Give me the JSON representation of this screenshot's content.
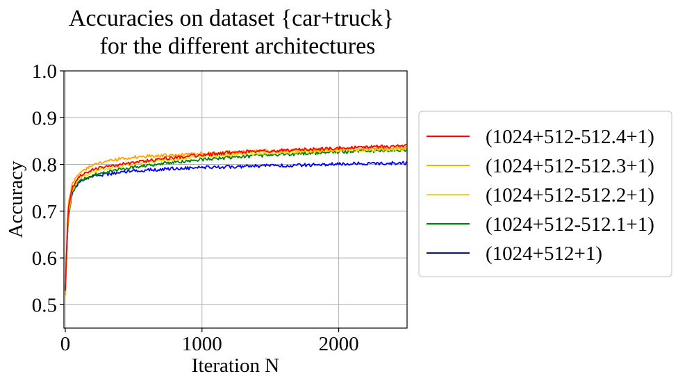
{
  "chart_data": {
    "type": "line",
    "title": [
      "Accuracies on dataset {car+truck}",
      "for the different architectures"
    ],
    "xlabel": "Iteration N",
    "ylabel": "Accuracy",
    "xlim": [
      -10,
      2500
    ],
    "ylim": [
      0.45,
      1.0
    ],
    "xticks": [
      0,
      1000,
      2000
    ],
    "xtick_labels": [
      "0",
      "1000",
      "2000"
    ],
    "yticks": [
      0.5,
      0.6,
      0.7,
      0.8,
      0.9,
      1.0
    ],
    "ytick_labels": [
      "0.5",
      "0.6",
      "0.7",
      "0.8",
      "0.9",
      "1.0"
    ],
    "grid": true,
    "legend_position": "outside-right",
    "series": [
      {
        "name": "(1024+512-512.4+1)",
        "color": "#ff0000",
        "anchors": [
          [
            0,
            0.53
          ],
          [
            20,
            0.7
          ],
          [
            50,
            0.75
          ],
          [
            100,
            0.775
          ],
          [
            200,
            0.79
          ],
          [
            400,
            0.8
          ],
          [
            600,
            0.808
          ],
          [
            800,
            0.815
          ],
          [
            1000,
            0.82
          ],
          [
            1200,
            0.825
          ],
          [
            1500,
            0.829
          ],
          [
            1800,
            0.832
          ],
          [
            2000,
            0.835
          ],
          [
            2200,
            0.837
          ],
          [
            2500,
            0.84
          ]
        ]
      },
      {
        "name": "(1024+512-512.3+1)",
        "color": "#ffa500",
        "anchors": [
          [
            0,
            0.52
          ],
          [
            20,
            0.71
          ],
          [
            50,
            0.76
          ],
          [
            100,
            0.782
          ],
          [
            200,
            0.8
          ],
          [
            400,
            0.812
          ],
          [
            600,
            0.818
          ],
          [
            800,
            0.82
          ],
          [
            1000,
            0.823
          ],
          [
            1200,
            0.826
          ],
          [
            1500,
            0.829
          ],
          [
            1800,
            0.831
          ],
          [
            2000,
            0.833
          ],
          [
            2200,
            0.834
          ],
          [
            2500,
            0.836
          ]
        ]
      },
      {
        "name": "(1024+512-512.2+1)",
        "color": "#ffd700",
        "anchors": [
          [
            0,
            0.52
          ],
          [
            20,
            0.69
          ],
          [
            50,
            0.745
          ],
          [
            100,
            0.77
          ],
          [
            200,
            0.785
          ],
          [
            400,
            0.797
          ],
          [
            600,
            0.805
          ],
          [
            800,
            0.812
          ],
          [
            1000,
            0.817
          ],
          [
            1200,
            0.821
          ],
          [
            1500,
            0.825
          ],
          [
            1800,
            0.828
          ],
          [
            2000,
            0.83
          ],
          [
            2200,
            0.831
          ],
          [
            2500,
            0.832
          ]
        ]
      },
      {
        "name": "(1024+512-512.1+1)",
        "color": "#008000",
        "anchors": [
          [
            0,
            0.53
          ],
          [
            20,
            0.68
          ],
          [
            50,
            0.74
          ],
          [
            100,
            0.765
          ],
          [
            200,
            0.777
          ],
          [
            400,
            0.79
          ],
          [
            600,
            0.798
          ],
          [
            800,
            0.805
          ],
          [
            1000,
            0.81
          ],
          [
            1200,
            0.815
          ],
          [
            1500,
            0.82
          ],
          [
            1800,
            0.824
          ],
          [
            2000,
            0.827
          ],
          [
            2200,
            0.829
          ],
          [
            2500,
            0.83
          ]
        ]
      },
      {
        "name": "(1024+512+1)",
        "color": "#0000ff",
        "anchors": [
          [
            0,
            0.53
          ],
          [
            20,
            0.68
          ],
          [
            50,
            0.74
          ],
          [
            100,
            0.762
          ],
          [
            200,
            0.775
          ],
          [
            400,
            0.783
          ],
          [
            600,
            0.788
          ],
          [
            800,
            0.791
          ],
          [
            1000,
            0.793
          ],
          [
            1200,
            0.795
          ],
          [
            1500,
            0.797
          ],
          [
            1800,
            0.799
          ],
          [
            2000,
            0.801
          ],
          [
            2200,
            0.802
          ],
          [
            2500,
            0.803
          ]
        ]
      }
    ]
  }
}
